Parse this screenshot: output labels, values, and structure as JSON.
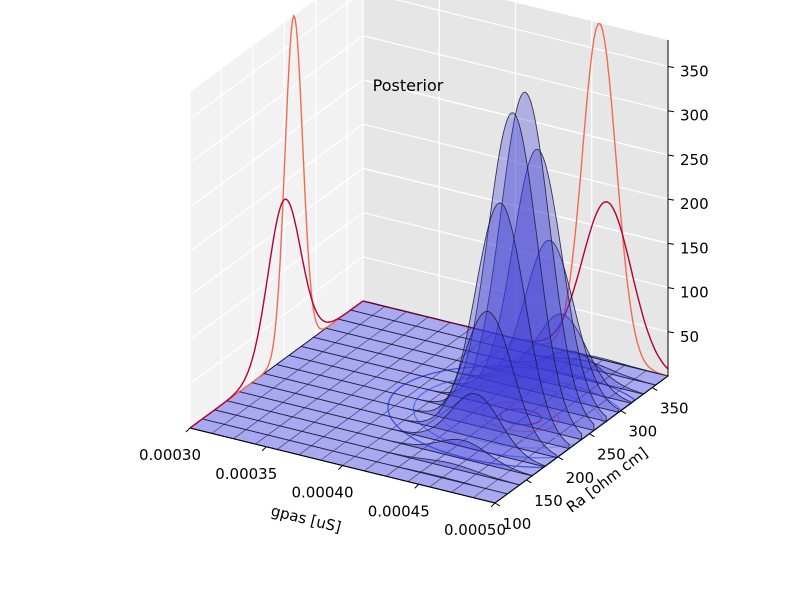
{
  "chart_data": {
    "type": "surface3d",
    "title": "Posterior",
    "xlabel": "gpas [uS]",
    "ylabel": "Ra [ohm cm]",
    "zlabel": "",
    "xlim": [
      0.0003,
      0.0005
    ],
    "ylim": [
      100,
      375
    ],
    "zlim": [
      0,
      380
    ],
    "xticks": [
      "0.00030",
      "0.00035",
      "0.00040",
      "0.00045",
      "0.00050"
    ],
    "yticks": [
      "100",
      "150",
      "200",
      "250",
      "300",
      "350"
    ],
    "zticks": [
      "50",
      "100",
      "150",
      "200",
      "250",
      "300",
      "350"
    ],
    "grid": true,
    "surface": {
      "peak_gpas": 0.000455,
      "peak_Ra": 250,
      "peak_height": 370,
      "sigma_gpas": 1.6e-05,
      "sigma_Ra": 38,
      "grid_steps": 14
    },
    "marginal_gpas": [
      {
        "name": "",
        "peak": 0.000455,
        "sigma": 1.1e-05,
        "height": 380,
        "color": "#f36b4f"
      },
      {
        "name": "",
        "peak": 0.00046,
        "sigma": 1.6e-05,
        "height": 180,
        "color": "#b3003a"
      }
    ],
    "marginal_Ra": [
      {
        "name": "",
        "peak": 265,
        "sigma": 14,
        "height": 380,
        "color": "#f36b4f"
      },
      {
        "name": "",
        "peak": 250,
        "sigma": 26,
        "height": 180,
        "color": "#b3003a"
      }
    ],
    "colors": {
      "surface_fill": "#3b3bd8",
      "floor_fill": "#9a9af0",
      "edge": "#1a1a3a",
      "contour_outer": "#3a50e0",
      "contour_inner": "#c02050"
    }
  }
}
